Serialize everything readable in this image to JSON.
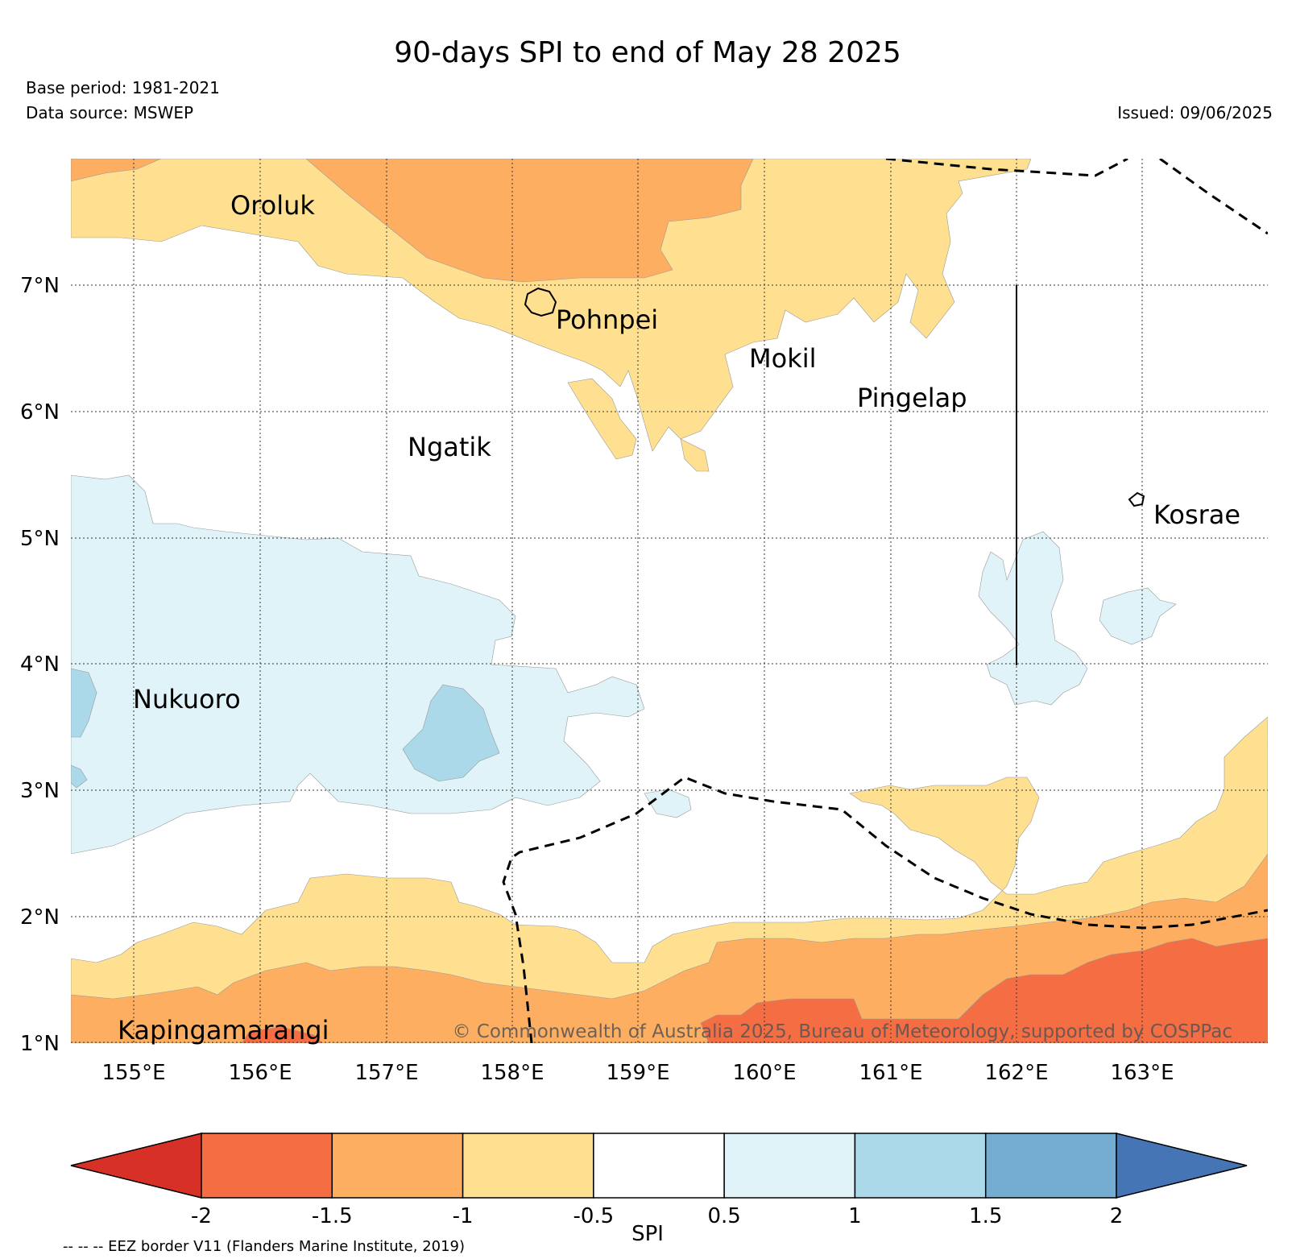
{
  "title": "90-days SPI to end of May 28 2025",
  "base_period": "Base period: 1981-2021",
  "data_source": "Data source: MSWEP",
  "issued": "Issued: 09/06/2025",
  "copyright": "© Commonwealth of Australia 2025, Bureau of Meteorology, supported by COSPPac",
  "eez_note": "-- -- -- EEZ border V11 (Flanders Marine Institute, 2019)",
  "map": {
    "lon_range": [
      154.5,
      164.0
    ],
    "lat_range": [
      1.0,
      8.0
    ],
    "lon_ticks": [
      "155°E",
      "156°E",
      "157°E",
      "158°E",
      "159°E",
      "160°E",
      "161°E",
      "162°E",
      "163°E"
    ],
    "lat_ticks": [
      "1°N",
      "2°N",
      "3°N",
      "4°N",
      "5°N",
      "6°N",
      "7°N"
    ],
    "gridlines": "dotted",
    "places": [
      {
        "name": "Oroluk",
        "lon": 155.8,
        "lat": 7.7
      },
      {
        "name": "Pohnpei",
        "lon": 158.2,
        "lat": 6.9
      },
      {
        "name": "Mokil",
        "lon": 159.8,
        "lat": 6.6
      },
      {
        "name": "Pingelap",
        "lon": 160.7,
        "lat": 6.2
      },
      {
        "name": "Ngatik",
        "lon": 157.3,
        "lat": 5.6
      },
      {
        "name": "Kosrae",
        "lon": 163.0,
        "lat": 5.3
      },
      {
        "name": "Nukuoro",
        "lon": 155.0,
        "lat": 3.9
      },
      {
        "name": "Kapingamarangi",
        "lon": 154.8,
        "lat": 1.1
      }
    ]
  },
  "colorbar": {
    "label": "SPI",
    "ticks": [
      "-2",
      "-1.5",
      "-1",
      "-0.5",
      "0.5",
      "1",
      "1.5",
      "2"
    ],
    "colors": [
      "#d73027",
      "#f46d43",
      "#fdae61",
      "#fee090",
      "#ffffff",
      "#e0f3f8",
      "#abd9e9",
      "#74add1",
      "#4575b4"
    ]
  }
}
